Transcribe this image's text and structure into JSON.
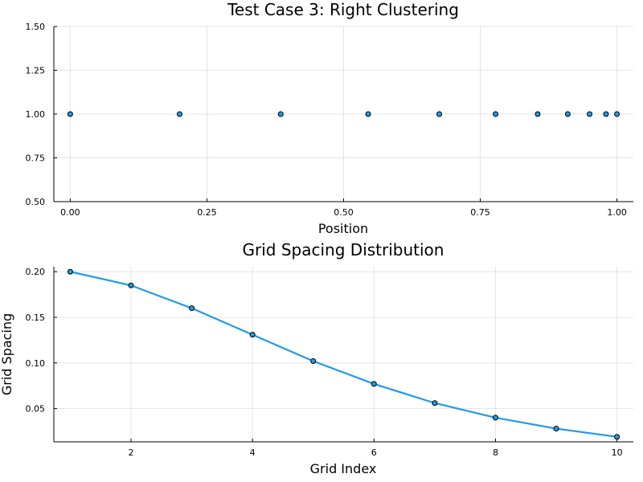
{
  "chart_data": [
    {
      "type": "scatter",
      "title": "Test Case 3: Right Clustering",
      "xlabel": "Position",
      "ylabel": "",
      "xlim": [
        -0.03,
        1.03
      ],
      "ylim": [
        0.5,
        1.5
      ],
      "xticks": [
        0.0,
        0.25,
        0.5,
        0.75,
        1.0
      ],
      "xtick_labels": [
        "0.00",
        "0.25",
        "0.50",
        "0.75",
        "1.00"
      ],
      "yticks": [
        0.5,
        0.75,
        1.0,
        1.25,
        1.5
      ],
      "ytick_labels": [
        "0.50",
        "0.75",
        "1.00",
        "1.25",
        "1.50"
      ],
      "grid": true,
      "legend": "none",
      "color": "#1f9bea",
      "series": [
        {
          "x": [
            0.0,
            0.2,
            0.385,
            0.545,
            0.675,
            0.778,
            0.855,
            0.91,
            0.95,
            0.98,
            1.0
          ],
          "y": [
            1,
            1,
            1,
            1,
            1,
            1,
            1,
            1,
            1,
            1,
            1
          ]
        }
      ]
    },
    {
      "type": "line",
      "title": "Grid Spacing Distribution",
      "xlabel": "Grid Index",
      "ylabel": "Grid Spacing",
      "xlim": [
        0.73,
        10.27
      ],
      "ylim": [
        0.0135,
        0.2055
      ],
      "xticks": [
        2,
        4,
        6,
        8,
        10
      ],
      "xtick_labels": [
        "2",
        "4",
        "6",
        "8",
        "10"
      ],
      "yticks": [
        0.05,
        0.1,
        0.15,
        0.2
      ],
      "ytick_labels": [
        "0.05",
        "0.10",
        "0.15",
        "0.20"
      ],
      "grid": true,
      "legend": "none",
      "color": "#1f9bea",
      "series": [
        {
          "x": [
            1,
            2,
            3,
            4,
            5,
            6,
            7,
            8,
            9,
            10
          ],
          "y": [
            0.2,
            0.185,
            0.16,
            0.131,
            0.102,
            0.077,
            0.056,
            0.04,
            0.028,
            0.019
          ]
        }
      ]
    }
  ]
}
